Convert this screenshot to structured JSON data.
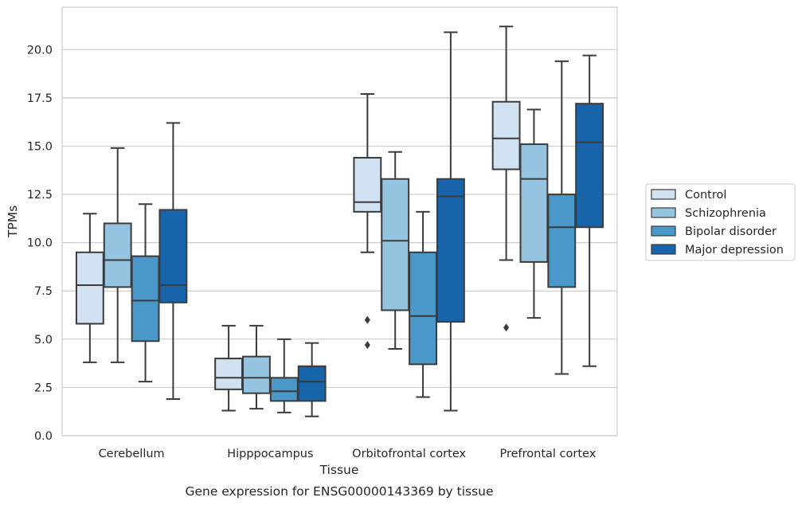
{
  "chart_data": {
    "type": "box",
    "title": "",
    "caption": "Gene expression for ENSG00000143369 by tissue",
    "xlabel": "Tissue",
    "ylabel": "TPMs",
    "ylim": [
      0,
      22.2
    ],
    "yticks": [
      0.0,
      2.5,
      5.0,
      7.5,
      10.0,
      12.5,
      15.0,
      17.5,
      20.0
    ],
    "ytick_labels": [
      "0.0",
      "2.5",
      "5.0",
      "7.5",
      "10.0",
      "12.5",
      "15.0",
      "17.5",
      "20.0"
    ],
    "categories": [
      "Cerebellum",
      "Hipppocampus",
      "Orbitofrontal cortex",
      "Prefrontal cortex"
    ],
    "grid": "horizontal",
    "legend_position": "right",
    "series": [
      {
        "name": "Control",
        "color": "#d0e1f2",
        "boxes": [
          {
            "whislo": 3.8,
            "q1": 5.8,
            "med": 7.8,
            "q3": 9.5,
            "whishi": 11.5,
            "fliers": []
          },
          {
            "whislo": 1.3,
            "q1": 2.4,
            "med": 3.0,
            "q3": 4.0,
            "whishi": 5.7,
            "fliers": []
          },
          {
            "whislo": 9.5,
            "q1": 11.6,
            "med": 12.1,
            "q3": 14.4,
            "whishi": 17.7,
            "fliers": [
              6.0,
              4.7
            ]
          },
          {
            "whislo": 9.1,
            "q1": 13.8,
            "med": 15.4,
            "q3": 17.3,
            "whishi": 21.2,
            "fliers": [
              5.6
            ]
          }
        ]
      },
      {
        "name": "Schizophrenia",
        "color": "#94c4df",
        "boxes": [
          {
            "whislo": 3.8,
            "q1": 7.7,
            "med": 9.1,
            "q3": 11.0,
            "whishi": 14.9,
            "fliers": []
          },
          {
            "whislo": 1.4,
            "q1": 2.2,
            "med": 3.0,
            "q3": 4.1,
            "whishi": 5.7,
            "fliers": []
          },
          {
            "whislo": 4.5,
            "q1": 6.5,
            "med": 10.1,
            "q3": 13.3,
            "whishi": 14.7,
            "fliers": []
          },
          {
            "whislo": 6.1,
            "q1": 9.0,
            "med": 13.3,
            "q3": 15.1,
            "whishi": 16.9,
            "fliers": []
          }
        ]
      },
      {
        "name": "Bipolar disorder",
        "color": "#4a98c9",
        "boxes": [
          {
            "whislo": 2.8,
            "q1": 4.9,
            "med": 7.0,
            "q3": 9.3,
            "whishi": 12.0,
            "fliers": []
          },
          {
            "whislo": 1.2,
            "q1": 1.8,
            "med": 2.3,
            "q3": 3.0,
            "whishi": 5.0,
            "fliers": []
          },
          {
            "whislo": 2.0,
            "q1": 3.7,
            "med": 6.2,
            "q3": 9.5,
            "whishi": 11.6,
            "fliers": []
          },
          {
            "whislo": 3.2,
            "q1": 7.7,
            "med": 10.8,
            "q3": 12.5,
            "whishi": 19.4,
            "fliers": []
          }
        ]
      },
      {
        "name": "Major depression",
        "color": "#1764ab",
        "boxes": [
          {
            "whislo": 1.9,
            "q1": 6.9,
            "med": 7.8,
            "q3": 11.7,
            "whishi": 16.2,
            "fliers": []
          },
          {
            "whislo": 1.0,
            "q1": 1.8,
            "med": 2.8,
            "q3": 3.6,
            "whishi": 4.8,
            "fliers": []
          },
          {
            "whislo": 1.3,
            "q1": 5.9,
            "med": 12.4,
            "q3": 13.3,
            "whishi": 20.9,
            "fliers": []
          },
          {
            "whislo": 3.6,
            "q1": 10.8,
            "med": 15.2,
            "q3": 17.2,
            "whishi": 19.7,
            "fliers": []
          }
        ]
      }
    ]
  }
}
